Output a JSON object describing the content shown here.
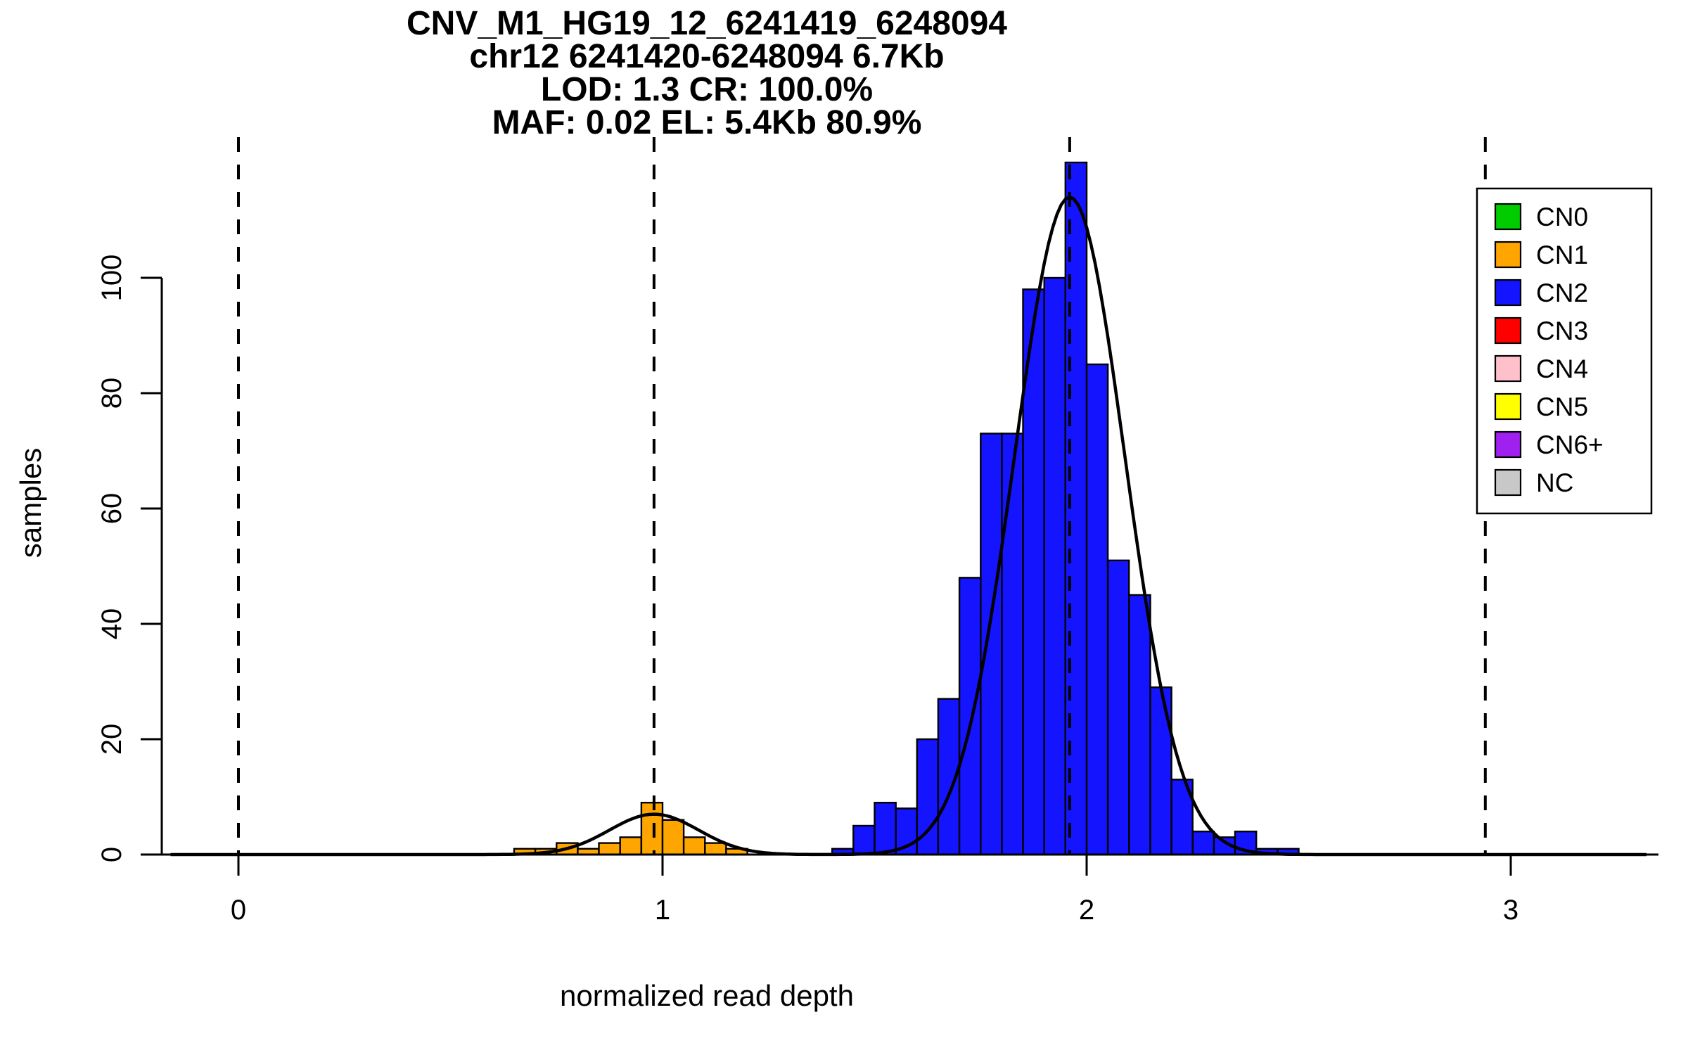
{
  "chart_data": {
    "type": "bar",
    "subtype": "histogram_with_density_curves",
    "title_lines": [
      "CNV_M1_HG19_12_6241419_6248094",
      "chr12 6241420-6248094 6.7Kb",
      "LOD: 1.3 CR: 100.0%",
      "MAF: 0.02 EL: 5.4Kb 80.9%"
    ],
    "xlabel": "normalized read depth",
    "ylabel": "samples",
    "x_ticks": [
      0,
      1,
      2,
      3
    ],
    "y_ticks": [
      0,
      20,
      40,
      60,
      80,
      100
    ],
    "xlim": [
      -0.18,
      3.35
    ],
    "ylim": [
      0,
      125
    ],
    "grid": false,
    "bin_width": 0.05,
    "series": [
      {
        "name": "CN1",
        "color": "#FFA500",
        "bars": [
          [
            0.65,
            1
          ],
          [
            0.7,
            1
          ],
          [
            0.75,
            2
          ],
          [
            0.8,
            1
          ],
          [
            0.85,
            2
          ],
          [
            0.9,
            3
          ],
          [
            0.95,
            9
          ],
          [
            1.0,
            6
          ],
          [
            1.05,
            3
          ],
          [
            1.1,
            2
          ],
          [
            1.15,
            1
          ]
        ]
      },
      {
        "name": "CN2",
        "color": "#1414FF",
        "bars": [
          [
            1.4,
            1
          ],
          [
            1.45,
            5
          ],
          [
            1.5,
            9
          ],
          [
            1.55,
            8
          ],
          [
            1.6,
            20
          ],
          [
            1.65,
            27
          ],
          [
            1.7,
            48
          ],
          [
            1.75,
            73
          ],
          [
            1.8,
            73
          ],
          [
            1.85,
            98
          ],
          [
            1.9,
            100
          ],
          [
            1.95,
            120
          ],
          [
            2.0,
            85
          ],
          [
            2.05,
            51
          ],
          [
            2.1,
            45
          ],
          [
            2.15,
            29
          ],
          [
            2.2,
            13
          ],
          [
            2.25,
            4
          ],
          [
            2.3,
            3
          ],
          [
            2.35,
            4
          ],
          [
            2.4,
            1
          ],
          [
            2.45,
            1
          ]
        ]
      }
    ],
    "density_curves": [
      {
        "component": "CN1",
        "mean": 0.98,
        "sd": 0.105,
        "amplitude": 7
      },
      {
        "component": "CN2",
        "mean": 1.96,
        "sd": 0.13,
        "amplitude": 114
      }
    ],
    "cluster_mean_lines": [
      0,
      0.98,
      1.96,
      2.94
    ],
    "line_style": {
      "dashed": true,
      "color": "#000000"
    },
    "legend": {
      "position": "top-right",
      "entries": [
        {
          "label": "CN0",
          "color": "#00CC00"
        },
        {
          "label": "CN1",
          "color": "#FFA500"
        },
        {
          "label": "CN2",
          "color": "#1414FF"
        },
        {
          "label": "CN3",
          "color": "#FF0000"
        },
        {
          "label": "CN4",
          "color": "#FFC0CB"
        },
        {
          "label": "CN5",
          "color": "#FFFF00"
        },
        {
          "label": "CN6+",
          "color": "#A020F0"
        },
        {
          "label": "NC",
          "color": "#C8C8C8"
        }
      ]
    }
  }
}
